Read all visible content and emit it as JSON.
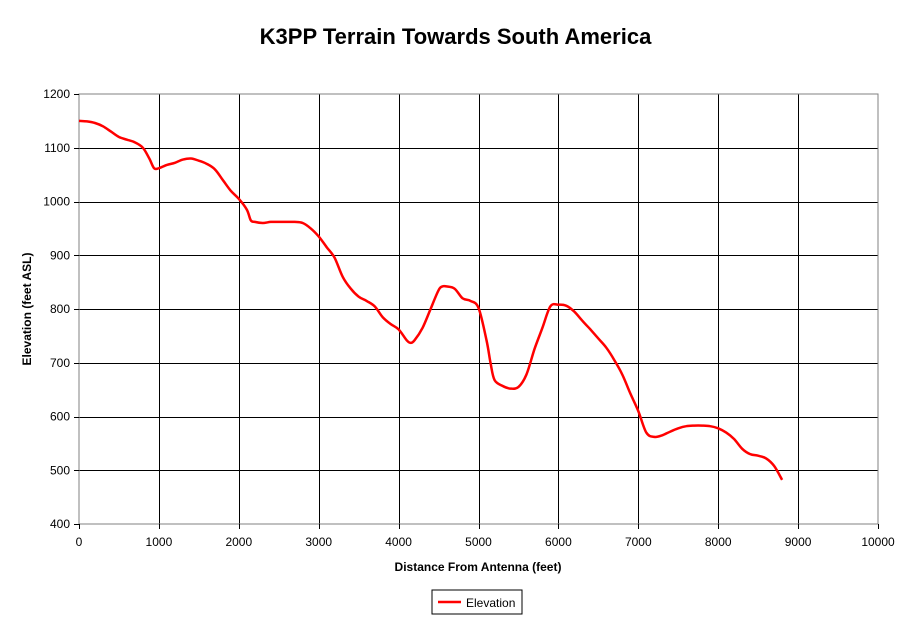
{
  "chart_data": {
    "type": "line",
    "title": "K3PP Terrain Towards South America",
    "xlabel": "Distance From Antenna (feet)",
    "ylabel": "Elevation (feet ASL)",
    "xlim": [
      0,
      10000
    ],
    "ylim": [
      400,
      1200
    ],
    "x_ticks": [
      0,
      1000,
      2000,
      3000,
      4000,
      5000,
      6000,
      7000,
      8000,
      9000,
      10000
    ],
    "y_ticks": [
      400,
      500,
      600,
      700,
      800,
      900,
      1000,
      1100,
      1200
    ],
    "grid": true,
    "legend": "bottom-center",
    "series": [
      {
        "name": "Elevation",
        "color": "#ff0000",
        "x": [
          0,
          100,
          200,
          300,
          400,
          500,
          600,
          700,
          800,
          880,
          940,
          1000,
          1100,
          1200,
          1300,
          1400,
          1500,
          1600,
          1700,
          1800,
          1900,
          2000,
          2100,
          2150,
          2200,
          2300,
          2400,
          2500,
          2600,
          2700,
          2800,
          2900,
          3000,
          3100,
          3200,
          3300,
          3400,
          3500,
          3600,
          3700,
          3800,
          3900,
          4000,
          4100,
          4150,
          4200,
          4300,
          4400,
          4500,
          4550,
          4600,
          4700,
          4800,
          4900,
          5000,
          5100,
          5150,
          5200,
          5300,
          5400,
          5500,
          5600,
          5700,
          5800,
          5900,
          6000,
          6100,
          6200,
          6300,
          6400,
          6500,
          6600,
          6700,
          6800,
          6900,
          7000,
          7100,
          7200,
          7300,
          7400,
          7500,
          7600,
          7700,
          7800,
          7900,
          8000,
          8100,
          8200,
          8300,
          8400,
          8500,
          8600,
          8700,
          8800
        ],
        "values": [
          1150,
          1149,
          1146,
          1140,
          1130,
          1120,
          1115,
          1110,
          1100,
          1080,
          1062,
          1062,
          1068,
          1072,
          1078,
          1080,
          1076,
          1070,
          1060,
          1040,
          1020,
          1005,
          985,
          965,
          962,
          960,
          962,
          962,
          962,
          962,
          960,
          950,
          935,
          915,
          895,
          860,
          838,
          823,
          815,
          805,
          785,
          772,
          762,
          742,
          737,
          742,
          765,
          800,
          835,
          842,
          842,
          838,
          820,
          815,
          802,
          742,
          700,
          668,
          657,
          652,
          655,
          678,
          725,
          765,
          805,
          808,
          806,
          795,
          778,
          762,
          745,
          728,
          705,
          678,
          643,
          610,
          570,
          562,
          565,
          572,
          578,
          582,
          583,
          583,
          582,
          578,
          570,
          558,
          540,
          530,
          527,
          522,
          508,
          482
        ]
      }
    ]
  }
}
